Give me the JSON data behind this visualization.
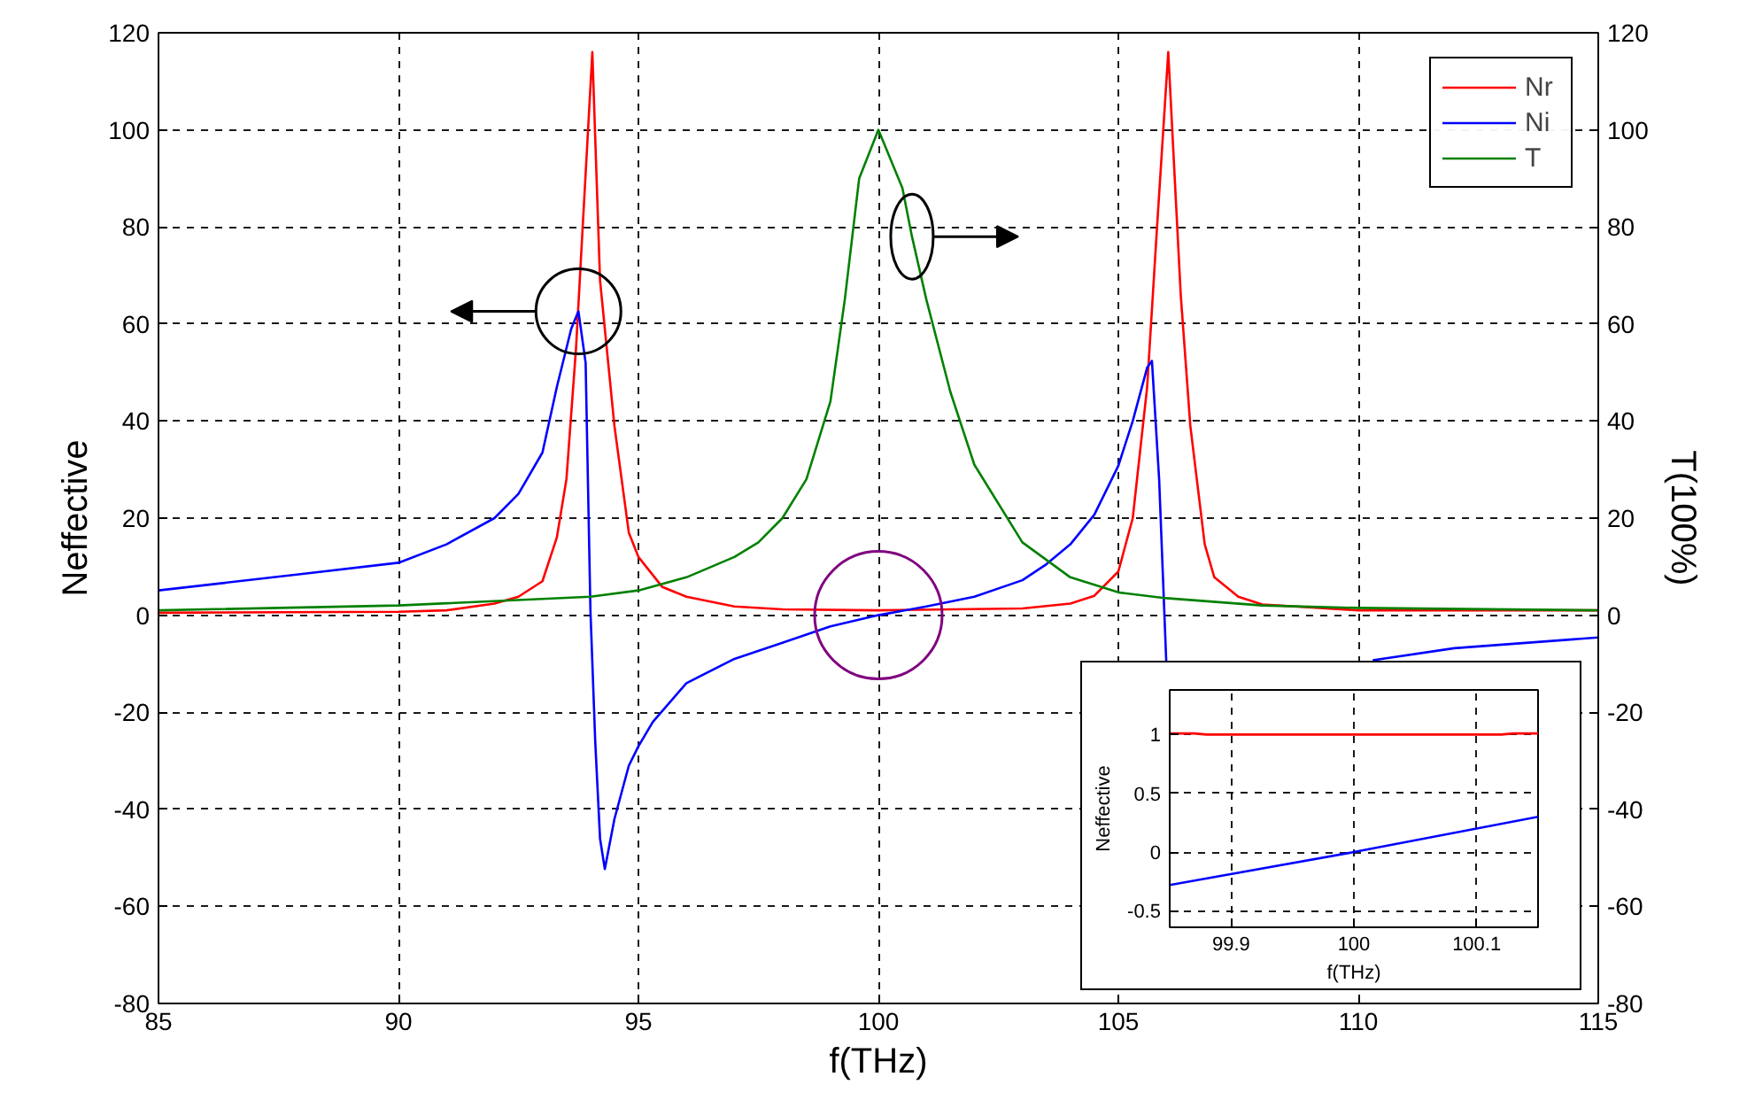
{
  "chart_data": [
    {
      "type": "line",
      "xlabel": "f(THz)",
      "ylabel": "Neffective",
      "y2label": "T(100%)",
      "xlim": [
        85,
        115
      ],
      "ylim": [
        -80,
        120
      ],
      "y2lim": [
        -80,
        120
      ],
      "xticks": [
        85,
        90,
        95,
        100,
        105,
        110,
        115
      ],
      "yticks": [
        -80,
        -60,
        -40,
        -20,
        0,
        20,
        40,
        60,
        80,
        100,
        120
      ],
      "y2ticks": [
        -80,
        -60,
        -40,
        -20,
        0,
        20,
        40,
        60,
        80,
        100,
        120
      ],
      "grid": true,
      "legend": "top right",
      "line_style": "solid",
      "series": [
        {
          "name": "Nr",
          "color": "#ff0000",
          "x": [
            85,
            90,
            91,
            92,
            92.5,
            93,
            93.3,
            93.5,
            93.7,
            93.85,
            94.04,
            94.2,
            94.5,
            94.8,
            95,
            95.5,
            96,
            97,
            98,
            100,
            103,
            104,
            104.5,
            105,
            105.3,
            105.6,
            105.8,
            106.04,
            106.3,
            106.5,
            106.8,
            107,
            107.5,
            108,
            110,
            115
          ],
          "values": [
            0.5,
            0.7,
            1,
            2.4,
            3.8,
            7,
            16,
            28,
            55,
            82,
            116,
            69,
            39,
            17,
            12,
            5.8,
            3.8,
            1.8,
            1.2,
            1,
            1.4,
            2.4,
            4,
            9,
            20,
            47,
            79,
            116,
            66,
            39,
            14.6,
            7.8,
            3.8,
            2.2,
            1,
            1
          ]
        },
        {
          "name": "Ni",
          "color": "#0000ff",
          "x": [
            85,
            88,
            90,
            91,
            92,
            92.5,
            93,
            93.3,
            93.6,
            93.75,
            93.9,
            94,
            94.1,
            94.2,
            94.3,
            94.5,
            94.8,
            95,
            95.3,
            96,
            97,
            98,
            99,
            100,
            101,
            102,
            103,
            103.5,
            104,
            104.5,
            105,
            105.3,
            105.6,
            105.7,
            105.85,
            106,
            107,
            108,
            109,
            110,
            110.3,
            112,
            115
          ],
          "values": [
            5.1,
            8.5,
            10.8,
            14.6,
            20,
            25,
            33.5,
            47,
            59,
            62.6,
            52,
            1,
            -26,
            -46,
            -52.3,
            -42,
            -31,
            -27,
            -22,
            -14,
            -9,
            -5.7,
            -2.3,
            0,
            1.8,
            3.8,
            7.2,
            10.5,
            14.6,
            20.7,
            30.8,
            40,
            51,
            52.4,
            28,
            -10,
            null,
            null,
            null,
            null,
            -9.3,
            -6.8,
            -4.6
          ]
        },
        {
          "name": "T",
          "color": "#008000",
          "axis": "y2",
          "x": [
            85,
            90,
            94,
            95,
            96,
            97,
            97.5,
            98,
            98.5,
            99,
            99.3,
            99.6,
            100,
            100.5,
            100.7,
            101,
            101.5,
            102,
            103,
            104,
            105,
            106,
            108,
            110,
            115
          ],
          "values": [
            1,
            2,
            3.8,
            5.1,
            7.8,
            12,
            15,
            20,
            28,
            44,
            65,
            90,
            100,
            88,
            78,
            65,
            46,
            31,
            15,
            7.8,
            4.7,
            3.5,
            2,
            1.5,
            1
          ]
        }
      ]
    },
    {
      "type": "line",
      "xlabel": "f(THz)",
      "ylabel": "Neffective",
      "xlim": [
        99.85,
        100.15
      ],
      "ylim": [
        -0.64,
        1.38
      ],
      "xticks": [
        99.9,
        100,
        100.1
      ],
      "yticks": [
        -0.5,
        0,
        0.5,
        1
      ],
      "grid": true,
      "line_style": "solid",
      "series": [
        {
          "color": "#ff0000",
          "x": [
            99.85,
            99.87,
            99.88,
            100.12,
            100.13,
            100.15
          ],
          "values": [
            1.01,
            1.01,
            1,
            1,
            1.01,
            1.01
          ]
        },
        {
          "color": "#0000ff",
          "x": [
            99.85,
            100,
            100.15
          ],
          "values": [
            -0.28,
            0,
            0.3
          ]
        }
      ]
    }
  ]
}
